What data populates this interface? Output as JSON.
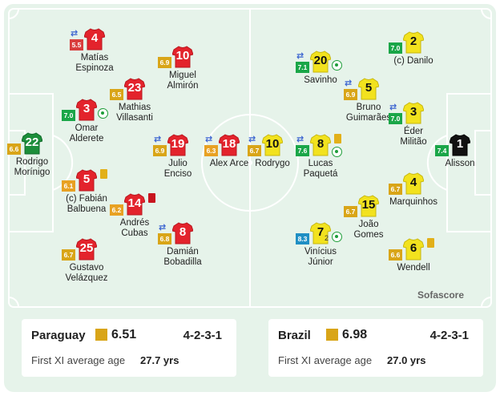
{
  "brand": "Sofascore",
  "colors": {
    "home_shirt": "#e3232c",
    "away_shirt": "#f2e21e",
    "home_keeper": "#1c8e3a",
    "away_keeper": "#111111"
  },
  "home": {
    "name": "Paraguay",
    "rating": "6.51",
    "formation": "4-2-3-1",
    "age_label": "First XI average age",
    "age": "27.7 yrs",
    "players": [
      {
        "num": "4",
        "name": "Matías\nEspinoza",
        "rating": "5.5",
        "rclass": "low",
        "sub": true
      },
      {
        "num": "10",
        "name": "Miguel\nAlmirón",
        "rating": "6.9",
        "rclass": "mid",
        "sub": false
      },
      {
        "num": "23",
        "name": "Mathias\nVillasanti",
        "rating": "6.5",
        "rclass": "mid",
        "sub": false
      },
      {
        "num": "3",
        "name": "Omar\nAlderete",
        "rating": "7.0",
        "rclass": "good",
        "sub": false,
        "goal": true
      },
      {
        "num": "22",
        "name": "Rodrigo\nMorínigo",
        "rating": "6.6",
        "rclass": "mid",
        "keeper": true
      },
      {
        "num": "19",
        "name": "Julio\nEnciso",
        "rating": "6.9",
        "rclass": "mid",
        "sub": true
      },
      {
        "num": "18",
        "name": "Alex Arce",
        "rating": "6.3",
        "rclass": "orange",
        "sub": true
      },
      {
        "num": "5",
        "name": "(c) Fabián\nBalbuena",
        "rating": "6.1",
        "rclass": "orange",
        "card": "yellow"
      },
      {
        "num": "14",
        "name": "Andrés\nCubas",
        "rating": "6.2",
        "rclass": "orange",
        "card": "red"
      },
      {
        "num": "8",
        "name": "Damián\nBobadilla",
        "rating": "6.8",
        "rclass": "mid",
        "sub": true
      },
      {
        "num": "25",
        "name": "Gustavo\nVelázquez",
        "rating": "6.7",
        "rclass": "mid"
      }
    ]
  },
  "away": {
    "name": "Brazil",
    "rating": "6.98",
    "formation": "4-2-3-1",
    "age_label": "First XI average age",
    "age": "27.0 yrs",
    "players": [
      {
        "num": "20",
        "name": "Savinho",
        "rating": "7.1",
        "rclass": "good",
        "sub": true,
        "goal": true
      },
      {
        "num": "2",
        "name": "(c) Danilo",
        "rating": "7.0",
        "rclass": "good"
      },
      {
        "num": "5",
        "name": "Bruno\nGuimarães",
        "rating": "6.9",
        "rclass": "mid",
        "sub": true
      },
      {
        "num": "3",
        "name": "Éder\nMilitão",
        "rating": "7.0",
        "rclass": "good",
        "sub": true
      },
      {
        "num": "10",
        "name": "Rodrygo",
        "rating": "6.7",
        "rclass": "mid",
        "sub": true
      },
      {
        "num": "8",
        "name": "Lucas\nPaquetá",
        "rating": "7.6",
        "rclass": "good",
        "sub": true,
        "card": "yellow",
        "goal": true
      },
      {
        "num": "1",
        "name": "Alisson",
        "rating": "7.4",
        "rclass": "good",
        "keeper": true
      },
      {
        "num": "4",
        "name": "Marquinhos",
        "rating": "6.7",
        "rclass": "mid"
      },
      {
        "num": "15",
        "name": "João\nGomes",
        "rating": "6.7",
        "rclass": "mid"
      },
      {
        "num": "7",
        "name": "Vinícius\nJúnior",
        "rating": "8.3",
        "rclass": "great",
        "goal": true,
        "goals": "2"
      },
      {
        "num": "6",
        "name": "Wendell",
        "rating": "6.6",
        "rclass": "mid",
        "card": "yellow"
      }
    ]
  }
}
